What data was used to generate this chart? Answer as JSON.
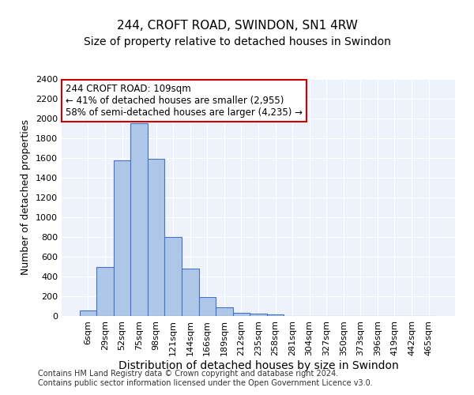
{
  "title": "244, CROFT ROAD, SWINDON, SN1 4RW",
  "subtitle": "Size of property relative to detached houses in Swindon",
  "xlabel": "Distribution of detached houses by size in Swindon",
  "ylabel": "Number of detached properties",
  "footnote1": "Contains HM Land Registry data © Crown copyright and database right 2024.",
  "footnote2": "Contains public sector information licensed under the Open Government Licence v3.0.",
  "bar_values": [
    60,
    500,
    1580,
    1950,
    1590,
    800,
    480,
    195,
    90,
    35,
    25,
    20,
    0,
    0,
    0,
    0,
    0,
    0,
    0,
    0,
    0
  ],
  "categories": [
    "6sqm",
    "29sqm",
    "52sqm",
    "75sqm",
    "98sqm",
    "121sqm",
    "144sqm",
    "166sqm",
    "189sqm",
    "212sqm",
    "235sqm",
    "258sqm",
    "281sqm",
    "304sqm",
    "327sqm",
    "350sqm",
    "373sqm",
    "396sqm",
    "419sqm",
    "442sqm",
    "465sqm"
  ],
  "bar_color": "#aec6e8",
  "bar_edge_color": "#4472c4",
  "background_color": "#eef3fb",
  "property_label": "244 CROFT ROAD: 109sqm",
  "annotation_line1": "← 41% of detached houses are smaller (2,955)",
  "annotation_line2": "58% of semi-detached houses are larger (4,235) →",
  "annotation_box_edge": "#cc0000",
  "ylim": [
    0,
    2400
  ],
  "yticks": [
    0,
    200,
    400,
    600,
    800,
    1000,
    1200,
    1400,
    1600,
    1800,
    2000,
    2200,
    2400
  ],
  "title_fontsize": 11,
  "subtitle_fontsize": 10,
  "xlabel_fontsize": 10,
  "ylabel_fontsize": 9,
  "tick_fontsize": 8,
  "annot_fontsize": 8.5
}
